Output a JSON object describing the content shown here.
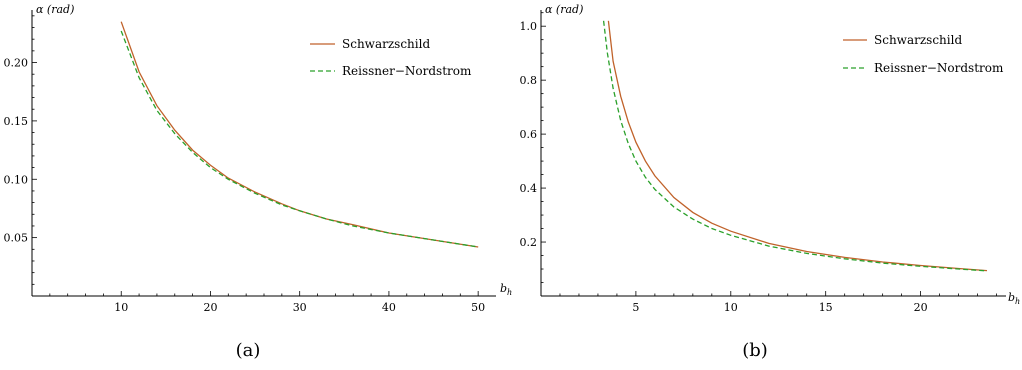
{
  "colors": {
    "schwarzschild": "#c0622a",
    "reissner": "#2aa02a"
  },
  "chart_data": [
    {
      "type": "line",
      "caption": "(a)",
      "xlabel": "b_h",
      "ylabel": "α (rad)",
      "xlim": [
        0,
        52
      ],
      "ylim": [
        0,
        0.245
      ],
      "xticks": [
        10,
        20,
        30,
        40,
        50
      ],
      "yticks": [
        0.05,
        0.1,
        0.15,
        0.2
      ],
      "ytick_labels": [
        "0.05",
        "0.10",
        "0.15",
        "0.20"
      ],
      "legend": {
        "position": "top-right",
        "entries": [
          "Schwarzschild",
          "Reissner−Nordstrom"
        ]
      },
      "series": [
        {
          "name": "Schwarzschild",
          "style": "solid",
          "color": "#c0622a",
          "x": [
            10,
            12,
            14,
            16,
            18,
            20,
            22,
            25,
            28,
            30,
            33,
            36,
            40,
            45,
            50
          ],
          "y": [
            0.235,
            0.192,
            0.163,
            0.142,
            0.125,
            0.112,
            0.101,
            0.089,
            0.079,
            0.073,
            0.066,
            0.061,
            0.054,
            0.048,
            0.042
          ]
        },
        {
          "name": "Reissner−Nordstrom",
          "style": "dashed",
          "color": "#2aa02a",
          "x": [
            10,
            12,
            14,
            16,
            18,
            20,
            22,
            25,
            28,
            30,
            33,
            36,
            40,
            45,
            50
          ],
          "y": [
            0.227,
            0.187,
            0.159,
            0.139,
            0.123,
            0.11,
            0.1,
            0.088,
            0.078,
            0.073,
            0.066,
            0.06,
            0.054,
            0.048,
            0.042
          ]
        }
      ]
    },
    {
      "type": "line",
      "caption": "(b)",
      "xlabel": "b_h",
      "ylabel": "α (rad)",
      "xlim": [
        0,
        24.5
      ],
      "ylim": [
        0,
        1.06
      ],
      "xticks": [
        5,
        10,
        15,
        20
      ],
      "yticks": [
        0.2,
        0.4,
        0.6,
        0.8,
        1.0
      ],
      "ytick_labels": [
        "0.2",
        "0.4",
        "0.6",
        "0.8",
        "1.0"
      ],
      "legend": {
        "position": "top-right",
        "entries": [
          "Schwarzschild",
          "Reissner−Nordstrom"
        ]
      },
      "series": [
        {
          "name": "Schwarzschild",
          "style": "solid",
          "color": "#c0622a",
          "x": [
            3.55,
            3.8,
            4.2,
            4.6,
            5.0,
            5.5,
            6.0,
            7.0,
            8.0,
            9.0,
            10.0,
            12.0,
            14.0,
            16.0,
            18.0,
            20.0,
            22.0,
            23.5
          ],
          "y": [
            1.02,
            0.87,
            0.74,
            0.645,
            0.57,
            0.5,
            0.445,
            0.365,
            0.31,
            0.27,
            0.24,
            0.195,
            0.165,
            0.143,
            0.126,
            0.113,
            0.102,
            0.094
          ]
        },
        {
          "name": "Reissner−Nordstrom",
          "style": "dashed",
          "color": "#2aa02a",
          "x": [
            3.3,
            3.5,
            3.8,
            4.2,
            4.6,
            5.0,
            5.5,
            6.0,
            7.0,
            8.0,
            9.0,
            10.0,
            12.0,
            14.0,
            16.0,
            18.0,
            20.0,
            22.0,
            23.5
          ],
          "y": [
            1.02,
            0.9,
            0.77,
            0.65,
            0.565,
            0.5,
            0.44,
            0.395,
            0.33,
            0.285,
            0.25,
            0.225,
            0.185,
            0.158,
            0.138,
            0.122,
            0.11,
            0.1,
            0.093
          ]
        }
      ]
    }
  ]
}
